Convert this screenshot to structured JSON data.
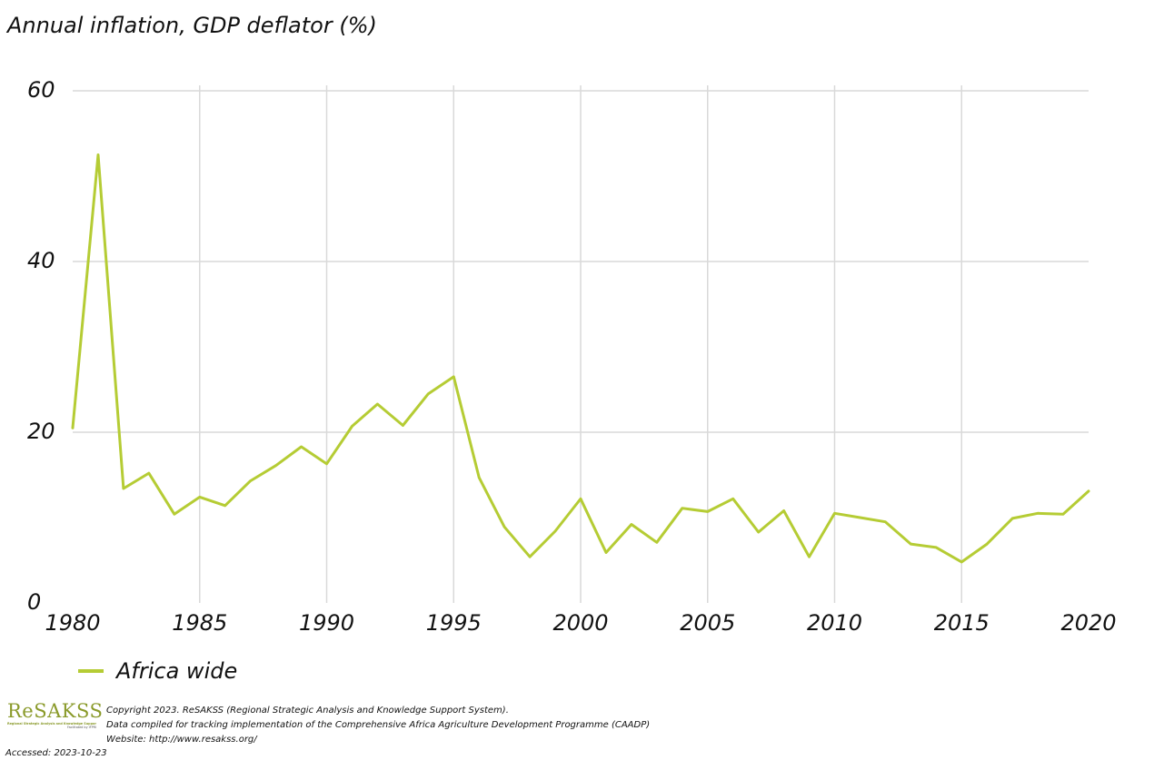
{
  "chart": {
    "title": "Annual inflation, GDP deflator (%)"
  },
  "chart_data": {
    "type": "line",
    "title": "Annual inflation, GDP deflator (%)",
    "xlabel": "",
    "ylabel": "",
    "xlim": [
      1980,
      2020
    ],
    "ylim": [
      0,
      60
    ],
    "x_ticks": [
      "1980",
      "1985",
      "1990",
      "1995",
      "2000",
      "2005",
      "2010",
      "2015",
      "2020"
    ],
    "y_ticks": [
      "0",
      "20",
      "40",
      "60"
    ],
    "grid": true,
    "legend_position": "bottom-left",
    "x": [
      1980,
      1981,
      1982,
      1983,
      1984,
      1985,
      1986,
      1987,
      1988,
      1989,
      1990,
      1991,
      1992,
      1993,
      1994,
      1995,
      1996,
      1997,
      1998,
      1999,
      2000,
      2001,
      2002,
      2003,
      2004,
      2005,
      2006,
      2007,
      2008,
      2009,
      2010,
      2011,
      2012,
      2013,
      2014,
      2015,
      2016,
      2017,
      2018,
      2019,
      2020
    ],
    "series": [
      {
        "name": "Africa wide",
        "color": "#b5cc34",
        "values": [
          20.5,
          52.5,
          13.4,
          15.2,
          10.4,
          12.4,
          11.4,
          14.3,
          16.1,
          18.3,
          16.3,
          20.7,
          23.3,
          20.8,
          24.5,
          26.5,
          14.7,
          8.9,
          5.4,
          8.4,
          12.2,
          5.9,
          9.2,
          7.1,
          11.1,
          10.7,
          12.2,
          8.3,
          10.8,
          5.4,
          10.5,
          10.0,
          9.5,
          6.9,
          6.5,
          4.8,
          6.9,
          9.9,
          10.5,
          10.4,
          13.1
        ]
      }
    ]
  },
  "legend": {
    "label": "Africa wide",
    "color": "#b5cc34"
  },
  "footer": {
    "logo_text": "ReSAKSS",
    "logo_tagline": "Regional Strategic Analysis and Knowledge Support System",
    "logo_sub": "Facilitated by IFPRI",
    "logo_color": "#8a9a2a",
    "copyright": "Copyright 2023. ReSAKSS (Regional Strategic Analysis and Knowledge Support System).",
    "compiled": "Data compiled for tracking implementation of the Comprehensive Africa Agriculture Development Programme (CAADP)",
    "website": "Website: http://www.resakss.org/",
    "accessed": "Accessed: 2023-10-23"
  },
  "colors": {
    "grid": "#d9d9d9",
    "line": "#b5cc34"
  }
}
